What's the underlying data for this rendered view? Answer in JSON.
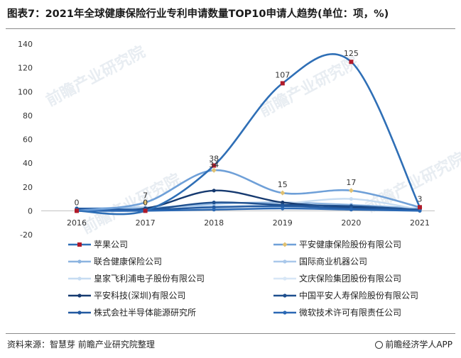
{
  "title": "图表7：2021年全球健康保险行业专利申请数量TOP10申请人趋势(单位：项，%)",
  "footer": {
    "source": "资料来源：智慧芽 前瞻产业研究院整理",
    "brand": "前瞻经济学人APP"
  },
  "watermark": "前瞻产业研究院",
  "chart_data": {
    "type": "line",
    "x": [
      "2016",
      "2017",
      "2018",
      "2019",
      "2020",
      "2021"
    ],
    "ylim": [
      -20,
      140
    ],
    "yticks": [
      -20,
      0,
      20,
      40,
      60,
      80,
      100,
      120,
      140
    ],
    "legend_position": "bottom",
    "series": [
      {
        "name": "苹果公司",
        "values": [
          0,
          0,
          38,
          107,
          125,
          3
        ],
        "color": "#2f6fb6",
        "marker": "#b01a2a",
        "labels": [
          0,
          0,
          38,
          107,
          125,
          3
        ]
      },
      {
        "name": "平安健康保险股份有限公司",
        "values": [
          0,
          7,
          34,
          15,
          17,
          3
        ],
        "color": "#6fa0d8",
        "marker": "#e0c070",
        "labels": [
          null,
          7,
          34,
          15,
          17,
          null
        ]
      },
      {
        "name": "联合健康保险公司",
        "values": [
          1,
          2,
          6,
          7,
          5,
          2
        ],
        "color": "#8cb4e0",
        "marker": "#8cb4e0"
      },
      {
        "name": "国际商业机器公司",
        "values": [
          2,
          3,
          4,
          3,
          2,
          1
        ],
        "color": "#a9c8ea",
        "marker": "#a9c8ea"
      },
      {
        "name": "皇家飞利浦电子股份有限公司",
        "values": [
          1,
          1,
          3,
          6,
          10,
          1
        ],
        "color": "#c6dcf2",
        "marker": "#c6dcf2"
      },
      {
        "name": "文庆保险集团股份有限公司",
        "values": [
          0,
          1,
          2,
          5,
          4,
          1
        ],
        "color": "#d7e6f6",
        "marker": "#d7e6f6"
      },
      {
        "name": "平安科技(深圳)有限公司",
        "values": [
          1,
          2,
          17,
          7,
          3,
          1
        ],
        "color": "#163a70",
        "marker": "#163a70"
      },
      {
        "name": "中国平安人寿保险股份有限公司",
        "values": [
          0,
          1,
          7,
          5,
          4,
          1
        ],
        "color": "#1e4f8e",
        "marker": "#1e4f8e"
      },
      {
        "name": "株式会社半导体能源研究所",
        "values": [
          2,
          1,
          3,
          4,
          2,
          1
        ],
        "color": "#2259a0",
        "marker": "#2259a0"
      },
      {
        "name": "微软技术许可有限责任公司",
        "values": [
          0,
          0,
          1,
          2,
          1,
          0
        ],
        "color": "#2a68b4",
        "marker": "#2a68b4"
      }
    ]
  }
}
